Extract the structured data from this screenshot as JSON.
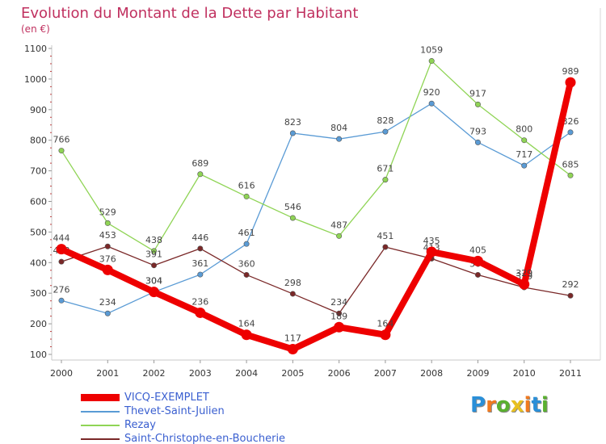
{
  "title": "Evolution du Montant de la Dette par Habitant",
  "unit": "(en €)",
  "logo": {
    "letters": [
      "P",
      "r",
      "o",
      "x",
      "i",
      "t",
      "i"
    ],
    "colors": [
      "#2a8fd8",
      "#f07a20",
      "#5ab030",
      "#e8c020",
      "#f07a20",
      "#2a8fd8",
      "#5ab030"
    ]
  },
  "chart_data": {
    "type": "line",
    "x": [
      "2000",
      "2001",
      "2002",
      "2003",
      "2004",
      "2005",
      "2006",
      "2007",
      "2008",
      "2009",
      "2010",
      "2011"
    ],
    "ylim": [
      100,
      1100
    ],
    "yticks": [
      100,
      200,
      300,
      400,
      500,
      600,
      700,
      800,
      900,
      1000,
      1100
    ],
    "grid": false,
    "legend_position": "bottom-left",
    "series": [
      {
        "name": "VICQ-EXEMPLET",
        "color": "#ee0000",
        "thick": true,
        "values": [
          444,
          376,
          304,
          236,
          164,
          117,
          189,
          164,
          435,
          405,
          329,
          989
        ],
        "labels": [
          "444",
          "376",
          "304",
          "236",
          "164",
          "117",
          "189",
          "164",
          "435",
          "405",
          "329",
          "989"
        ]
      },
      {
        "name": "Thevet-Saint-Julien",
        "color": "#5a9bd5",
        "thick": false,
        "values": [
          276,
          234,
          304,
          361,
          461,
          823,
          804,
          828,
          920,
          793,
          717,
          826
        ],
        "labels": [
          "276",
          "234",
          "304",
          "361",
          "461",
          "823",
          "804",
          "828",
          "920",
          "793",
          "717",
          "826"
        ]
      },
      {
        "name": "Rezay",
        "color": "#8fd455",
        "thick": false,
        "values": [
          766,
          529,
          438,
          689,
          616,
          546,
          487,
          671,
          1059,
          917,
          800,
          685
        ],
        "labels": [
          "766",
          "529",
          "438",
          "689",
          "616",
          "546",
          "487",
          "671",
          "1059",
          "917",
          "800",
          "685"
        ]
      },
      {
        "name": "Saint-Christophe-en-Boucherie",
        "color": "#7a2828",
        "thick": false,
        "values": [
          403,
          453,
          391,
          446,
          360,
          298,
          234,
          451,
          413,
          360,
          319,
          292
        ],
        "labels": [
          "403",
          "453",
          "391",
          "446",
          "360",
          "298",
          "234",
          "451",
          "413",
          "360",
          "319",
          "292"
        ]
      }
    ]
  }
}
